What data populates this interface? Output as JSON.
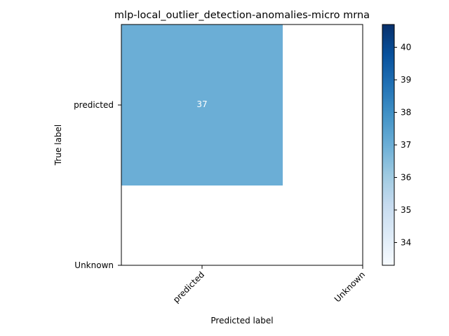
{
  "chart_data": {
    "type": "heatmap",
    "title": "mlp-local_outlier_detection-anomalies-micro mrna",
    "xlabel": "Predicted label",
    "ylabel": "True label",
    "x_categories": [
      "predicted",
      "Unknown"
    ],
    "y_categories": [
      "predicted",
      "Unknown"
    ],
    "cells": [
      {
        "row": "predicted",
        "col": "predicted",
        "value": 37,
        "label": "37",
        "color": "#6baed6"
      }
    ],
    "colorbar": {
      "cmap": "Blues",
      "range": [
        33.3,
        40.7
      ],
      "ticks": [
        34,
        35,
        36,
        37,
        38,
        39,
        40
      ],
      "colors": [
        "#f7fbff",
        "#deebf7",
        "#c6dbef",
        "#9ecae1",
        "#6baed6",
        "#4292c6",
        "#2171b5",
        "#08519c",
        "#08306b"
      ]
    },
    "grid": false
  }
}
